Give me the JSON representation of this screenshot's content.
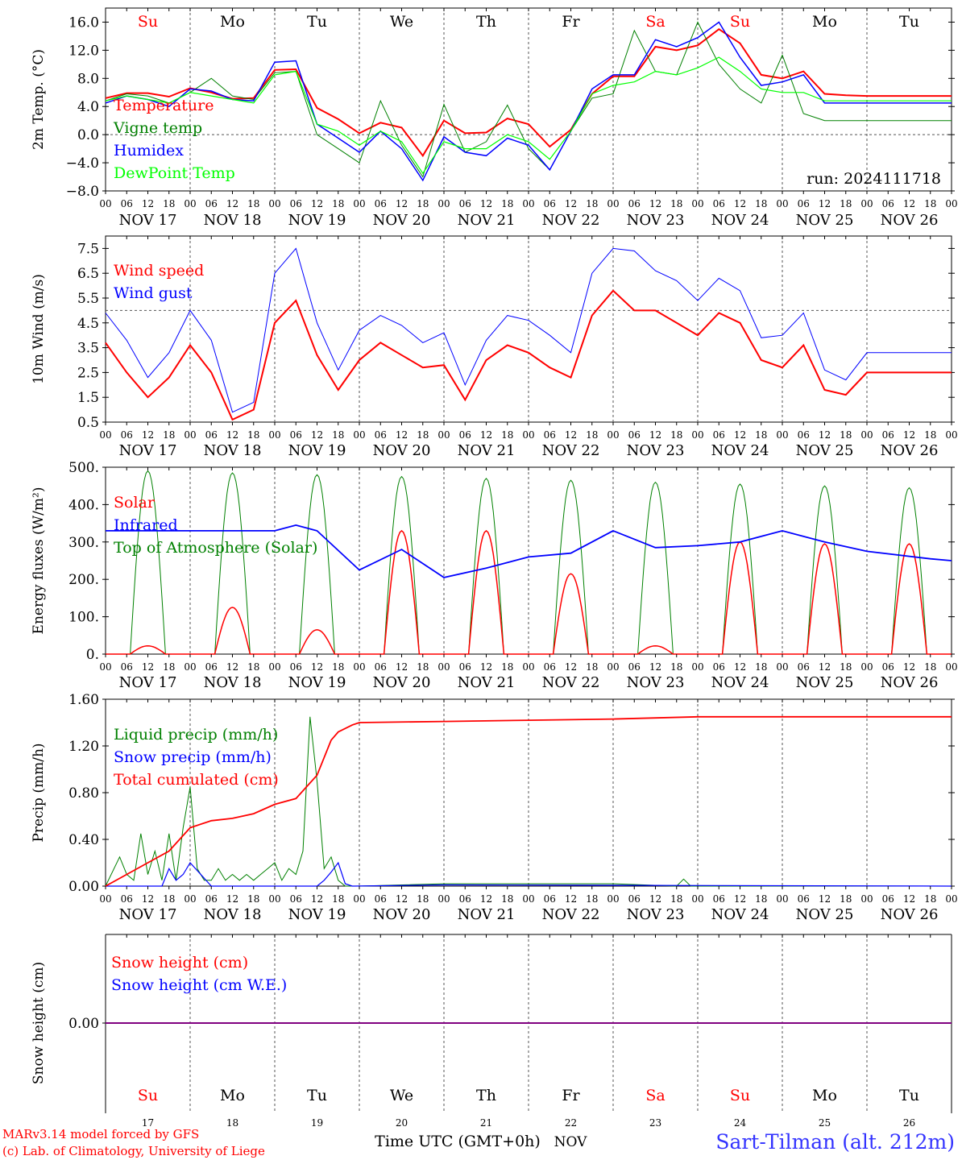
{
  "colors": {
    "red": "#ff0000",
    "green": "#008000",
    "blue": "#0000ff",
    "lightgreen": "#00ff00",
    "axis": "#000000",
    "grid": "#555555",
    "purple": "#800080"
  },
  "x_axis": {
    "hour_ticks": [
      "00",
      "06",
      "12",
      "18"
    ],
    "final_tick": "00",
    "dates": [
      "NOV 17",
      "NOV 18",
      "NOV 19",
      "NOV 20",
      "NOV 21",
      "NOV 22",
      "NOV 23",
      "NOV 24",
      "NOV 25",
      "NOV 26"
    ],
    "weekdays": [
      "Su",
      "Mo",
      "Tu",
      "We",
      "Th",
      "Fr",
      "Sa",
      "Su",
      "Mo",
      "Tu"
    ],
    "weekday_colors": [
      "red",
      "black",
      "black",
      "black",
      "black",
      "black",
      "red",
      "red",
      "black",
      "black"
    ],
    "day_numbers": [
      "17",
      "18",
      "19",
      "20",
      "21",
      "22",
      "23",
      "24",
      "25",
      "26"
    ],
    "bottom_label": "Time UTC (GMT+0h)",
    "month_label": "NOV"
  },
  "footer": {
    "model_line": "MARv3.14 model forced by GFS",
    "copyright_line": "(c) Lab. of Climatology, University of Liege",
    "station": "Sart-Tilman (alt. 212m)"
  },
  "chart_data": [
    {
      "type": "line",
      "ylabel": "2m Temp. (°C)",
      "yticks": [
        "16.0",
        "12.0",
        "8.0",
        "4.0",
        "0.0",
        "-4.0",
        "-8.0"
      ],
      "ylim": [
        -8,
        18
      ],
      "reference_line": 0,
      "run_label": "run: 2024111718",
      "x_hours": [
        0,
        6,
        12,
        18,
        24,
        30,
        36,
        42,
        48,
        54,
        60,
        66,
        72,
        78,
        84,
        90,
        96,
        102,
        108,
        114,
        120,
        126,
        132,
        138,
        144,
        150,
        156,
        162,
        168,
        174,
        180,
        186,
        192,
        198,
        204,
        210,
        216,
        222,
        228,
        234,
        240
      ],
      "series": [
        {
          "name": "Temperature",
          "color": "red",
          "values": [
            5.2,
            5.9,
            5.9,
            5.4,
            6.6,
            6.0,
            5.1,
            5.2,
            9.2,
            9.3,
            3.8,
            2.2,
            0.2,
            1.7,
            1.0,
            -3.0,
            2.0,
            0.2,
            0.3,
            2.3,
            1.5,
            -1.7,
            0.7,
            5.8,
            8.3,
            8.3,
            12.5,
            12.0,
            12.7,
            15.0,
            13.0,
            8.5,
            8.0,
            9.0,
            5.8,
            5.6,
            5.5,
            5.5,
            5.5,
            5.5,
            5.5
          ]
        },
        {
          "name": "Vigne temp",
          "color": "green",
          "values": [
            4.8,
            5.8,
            5.5,
            4.5,
            6.0,
            8.0,
            5.5,
            5.0,
            8.8,
            9.0,
            0.0,
            -2.0,
            -4.0,
            4.8,
            -1.5,
            -6.0,
            4.3,
            -2.5,
            -1.0,
            4.2,
            -2.0,
            -5.0,
            0.5,
            5.2,
            5.8,
            14.8,
            9.0,
            8.5,
            16.0,
            10.0,
            6.5,
            4.5,
            11.3,
            3.0,
            2.0,
            2.0,
            2.0,
            2.0,
            2.0,
            2.0,
            2.0
          ]
        },
        {
          "name": "Humidex",
          "color": "blue",
          "values": [
            4.5,
            5.5,
            5.0,
            4.0,
            6.5,
            6.2,
            5.0,
            4.8,
            10.3,
            10.5,
            1.5,
            -0.5,
            -2.5,
            0.5,
            -2.0,
            -6.5,
            -0.3,
            -2.5,
            -3.0,
            -0.5,
            -1.5,
            -5.0,
            0.5,
            6.5,
            8.5,
            8.5,
            13.5,
            12.5,
            13.8,
            16.0,
            11.0,
            7.0,
            7.5,
            8.5,
            4.5,
            4.5,
            4.5,
            4.5,
            4.5,
            4.5,
            4.5
          ]
        },
        {
          "name": "DewPoint Temp",
          "color": "lightgreen",
          "values": [
            4.8,
            5.5,
            5.0,
            4.5,
            6.0,
            5.5,
            5.0,
            4.5,
            8.5,
            9.0,
            1.5,
            0.5,
            -1.5,
            0.5,
            -1.0,
            -5.5,
            -1.0,
            -2.0,
            -2.0,
            0.0,
            -1.0,
            -3.5,
            0.5,
            5.8,
            7.0,
            7.5,
            9.0,
            8.5,
            9.5,
            11.0,
            9.0,
            6.5,
            6.0,
            6.0,
            4.8,
            4.8,
            4.8,
            4.8,
            4.8,
            4.8,
            4.8
          ]
        }
      ]
    },
    {
      "type": "line",
      "ylabel": "10m Wind (m/s)",
      "yticks": [
        "7.5",
        "6.5",
        "5.5",
        "4.5",
        "3.5",
        "2.5",
        "1.5",
        "0.5"
      ],
      "ylim": [
        0.5,
        8.0
      ],
      "reference_line": 5.0,
      "x_hours": [
        0,
        6,
        12,
        18,
        24,
        30,
        36,
        42,
        48,
        54,
        60,
        66,
        72,
        78,
        84,
        90,
        96,
        102,
        108,
        114,
        120,
        126,
        132,
        138,
        144,
        150,
        156,
        162,
        168,
        174,
        180,
        186,
        192,
        198,
        204,
        210,
        216,
        222,
        228,
        234,
        240
      ],
      "series": [
        {
          "name": "Wind speed",
          "color": "red",
          "values": [
            3.7,
            2.5,
            1.5,
            2.3,
            3.6,
            2.5,
            0.6,
            1.0,
            4.5,
            5.4,
            3.2,
            1.8,
            3.0,
            3.7,
            3.2,
            2.7,
            2.8,
            1.4,
            3.0,
            3.6,
            3.3,
            2.7,
            2.3,
            4.8,
            5.8,
            5.0,
            5.0,
            4.5,
            4.0,
            4.9,
            4.5,
            3.0,
            2.7,
            3.6,
            1.8,
            1.6,
            2.5,
            2.5,
            2.5,
            2.5,
            2.5
          ]
        },
        {
          "name": "Wind gust",
          "color": "blue",
          "values": [
            4.9,
            3.8,
            2.3,
            3.3,
            5.0,
            3.8,
            0.9,
            1.3,
            6.5,
            7.5,
            4.5,
            2.6,
            4.2,
            4.8,
            4.4,
            3.7,
            4.1,
            2.0,
            3.8,
            4.8,
            4.6,
            4.0,
            3.3,
            6.5,
            7.5,
            7.4,
            6.6,
            6.2,
            5.4,
            6.3,
            5.8,
            3.9,
            4.0,
            4.9,
            2.6,
            2.2,
            3.3,
            3.3,
            3.3,
            3.3,
            3.3
          ]
        }
      ]
    },
    {
      "type": "line",
      "ylabel": "Energy fluxes (W/m²)",
      "yticks": [
        "500.",
        "400.",
        "300.",
        "200.",
        "100.",
        "0."
      ],
      "ylim": [
        0,
        500
      ],
      "day_peaks": {
        "Solar": [
          22,
          125,
          65,
          330,
          330,
          215,
          22,
          300,
          295,
          295
        ],
        "Top of Atmosphere (Solar)": [
          490,
          485,
          480,
          475,
          470,
          465,
          460,
          455,
          450,
          445
        ]
      },
      "series": [
        {
          "name": "Solar",
          "color": "red"
        },
        {
          "name": "Infrared",
          "color": "blue",
          "x_hours": [
            0,
            24,
            48,
            54,
            60,
            72,
            84,
            96,
            108,
            120,
            132,
            144,
            156,
            168,
            180,
            192,
            204,
            216,
            234,
            240
          ],
          "values": [
            330,
            330,
            330,
            345,
            330,
            225,
            280,
            205,
            230,
            260,
            270,
            330,
            285,
            290,
            300,
            330,
            300,
            275,
            255,
            250
          ]
        },
        {
          "name": "Top of Atmosphere (Solar)",
          "color": "green"
        }
      ]
    },
    {
      "type": "line",
      "ylabel": "Precip (mm/h)",
      "yticks": [
        "1.60",
        "1.20",
        "0.80",
        "0.40",
        "0.00"
      ],
      "ylim": [
        0,
        1.6
      ],
      "series": [
        {
          "name": "Liquid precip (mm/h)",
          "color": "green",
          "x_hours": [
            0,
            4,
            6,
            8,
            10,
            12,
            14,
            16,
            18,
            20,
            22,
            24,
            26,
            28,
            30,
            32,
            34,
            36,
            38,
            40,
            42,
            44,
            46,
            48,
            50,
            52,
            54,
            56,
            58,
            60,
            62,
            64,
            66,
            68,
            70,
            72,
            96,
            120,
            144,
            162,
            164,
            166,
            240
          ],
          "values": [
            0.0,
            0.25,
            0.1,
            0.05,
            0.45,
            0.1,
            0.3,
            0.05,
            0.45,
            0.05,
            0.5,
            0.85,
            0.15,
            0.05,
            0.05,
            0.15,
            0.05,
            0.1,
            0.05,
            0.1,
            0.05,
            0.1,
            0.15,
            0.2,
            0.05,
            0.15,
            0.1,
            0.3,
            1.45,
            0.9,
            0.15,
            0.25,
            0.05,
            0.0,
            0.0,
            0.0,
            0.02,
            0.02,
            0.02,
            0.0,
            0.06,
            0.0,
            0.0
          ]
        },
        {
          "name": "Snow precip (mm/h)",
          "color": "blue",
          "x_hours": [
            0,
            16,
            18,
            20,
            22,
            24,
            30,
            60,
            62,
            64,
            66,
            68,
            70,
            96,
            240
          ],
          "values": [
            0.0,
            0.0,
            0.15,
            0.05,
            0.1,
            0.2,
            0.0,
            0.0,
            0.05,
            0.12,
            0.2,
            0.02,
            0.0,
            0.01,
            0.0
          ]
        },
        {
          "name": "Total cumulated (cm)",
          "color": "red",
          "x_hours": [
            0,
            6,
            12,
            18,
            24,
            30,
            36,
            42,
            48,
            54,
            60,
            64,
            66,
            70,
            72,
            96,
            120,
            144,
            168,
            240
          ],
          "values": [
            0.0,
            0.1,
            0.2,
            0.3,
            0.5,
            0.56,
            0.58,
            0.62,
            0.7,
            0.75,
            0.95,
            1.25,
            1.32,
            1.38,
            1.4,
            1.41,
            1.42,
            1.43,
            1.45,
            1.45
          ]
        }
      ]
    },
    {
      "type": "line",
      "ylabel": "Snow height (cm)",
      "yticks": [
        "0.00"
      ],
      "series": [
        {
          "name": "Snow height (cm)",
          "color": "red",
          "values": [
            0.0,
            0.0
          ]
        },
        {
          "name": "Snow height (cm W.E.)",
          "color": "blue",
          "values": [
            0.0,
            0.0
          ]
        }
      ]
    }
  ]
}
